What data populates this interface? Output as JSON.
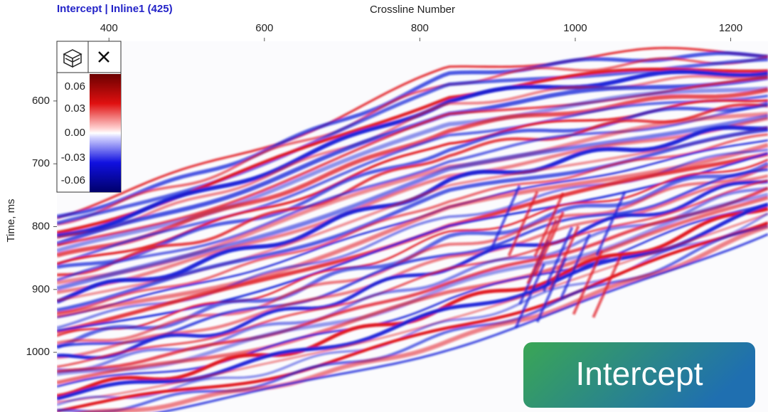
{
  "header": {
    "title": "Intercept | Inline1 (425)"
  },
  "x_axis": {
    "label": "Crossline Number",
    "lim": [
      333,
      1248
    ],
    "ticks": [
      400,
      600,
      800,
      1000,
      1200
    ]
  },
  "y_axis": {
    "label": "Time, ms",
    "lim": [
      505,
      1095
    ],
    "ticks": [
      600,
      700,
      800,
      900,
      1000
    ]
  },
  "colorbar": {
    "ticks": [
      "0.06",
      "0.03",
      "0.00",
      "-0.03",
      "-0.06"
    ]
  },
  "badge": {
    "text": "Intercept"
  }
}
